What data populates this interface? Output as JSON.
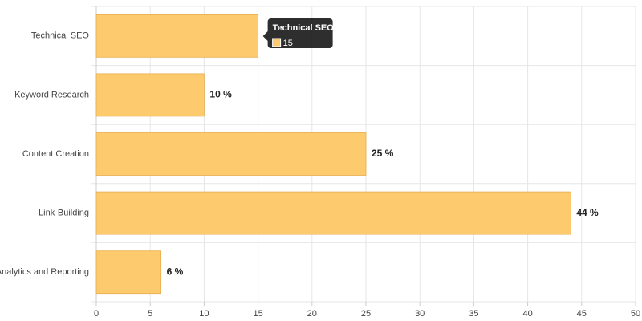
{
  "chart_data": {
    "type": "hbar",
    "categories": [
      "Technical SEO",
      "Keyword Research",
      "Content Creation",
      "Link-Building",
      "Analytics and Reporting"
    ],
    "values": [
      15,
      10,
      25,
      44,
      6
    ],
    "value_labels": [
      null,
      "10 %",
      "25 %",
      "44 %",
      "6 %"
    ],
    "color": "#fdca6e",
    "xlim": [
      0,
      50
    ],
    "xticks": [
      0,
      5,
      10,
      15,
      20,
      25,
      30,
      35,
      40,
      45,
      50
    ],
    "grid": true,
    "tooltip": {
      "title": "Technical SEO",
      "value": 15
    }
  }
}
